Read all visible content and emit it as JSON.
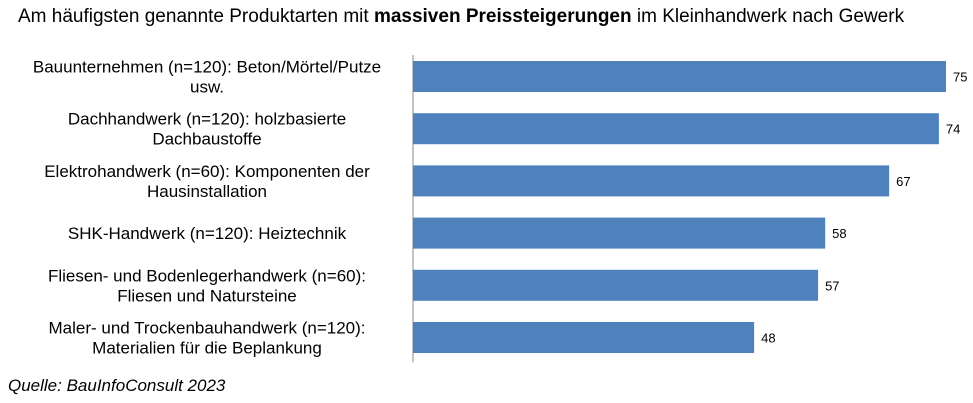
{
  "title": {
    "part1": "Am häufigsten genannte Produktarten mit ",
    "bold": "massiven Preissteigerungen",
    "part2": " im Kleinhandwerk nach Gewerk"
  },
  "source": "Quelle: BauInfoConsult 2023",
  "colors": {
    "bar": "#4f81bd"
  },
  "chart_data": {
    "type": "bar",
    "orientation": "horizontal",
    "categories": [
      [
        "Bauunternehmen (n=120): Beton/Mörtel/Putze",
        "usw."
      ],
      [
        "Dachhandwerk (n=120): holzbasierte",
        "Dachbaustoffe"
      ],
      [
        "Elektrohandwerk (n=60): Komponenten der",
        "Hausinstallation"
      ],
      [
        "SHK-Handwerk (n=120): Heiztechnik"
      ],
      [
        "Fliesen- und Bodenlegerhandwerk (n=60):",
        "Fliesen und Natursteine"
      ],
      [
        "Maler- und Trockenbauhandwerk (n=120):",
        "Materialien für die Beplankung"
      ]
    ],
    "values": [
      75,
      74,
      67,
      58,
      57,
      48
    ],
    "xlim": [
      0,
      75
    ],
    "grid": false,
    "data_labels": true
  }
}
